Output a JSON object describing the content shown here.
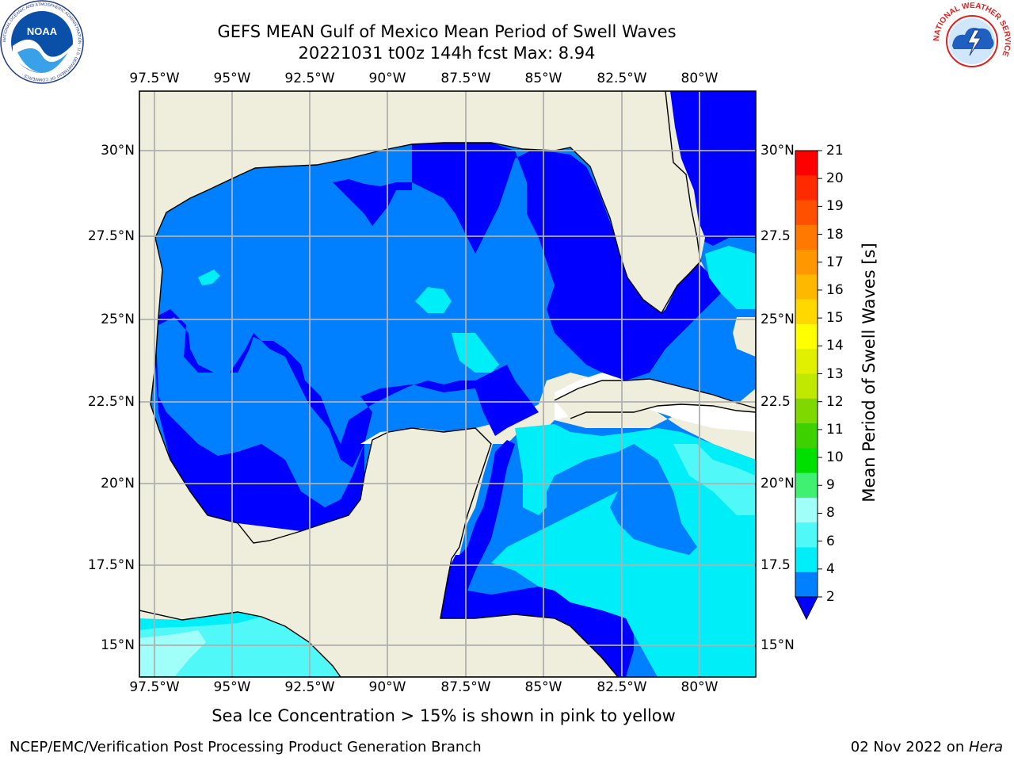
{
  "header": {
    "title_line1": "GEFS MEAN Gulf of Mexico Mean Period of Swell Waves",
    "title_line2": "20221031 t00z 144h fcst   Max: 8.94"
  },
  "axes": {
    "lon_labels": [
      "97.5°W",
      "95°W",
      "92.5°W",
      "90°W",
      "87.5°W",
      "85°W",
      "82.5°W",
      "80°W"
    ],
    "lat_labels": [
      "30°N",
      "27.5°N",
      "25°N",
      "22.5°N",
      "20°N",
      "17.5°N",
      "15°N"
    ],
    "lat_labels_right": [
      "30°N",
      "27.5",
      "25°N",
      "22.5",
      "20°N",
      "17.5",
      "15°N"
    ]
  },
  "colorbar": {
    "label": "Mean Period of Swell Waves [s]",
    "ticks": [
      "21",
      "20",
      "19",
      "18",
      "17",
      "16",
      "15",
      "14",
      "13",
      "12",
      "11",
      "10",
      "9",
      "8",
      "6",
      "4",
      "2"
    ],
    "colors": [
      "#ff0000",
      "#ff2a00",
      "#ff5000",
      "#ff7800",
      "#ff9800",
      "#ffb800",
      "#ffd800",
      "#ffff00",
      "#e0f000",
      "#c0e800",
      "#7fd800",
      "#3fd000",
      "#00e000",
      "#40f070",
      "#a0fff8",
      "#50f8f8",
      "#00eef8",
      "#0080ff"
    ],
    "under_color": "#0000ff"
  },
  "map": {
    "land_color": "#efeedd",
    "colors": {
      "deep": "#0000ff",
      "mid": "#0080ff",
      "light": "#00eef8",
      "lighter": "#50f8f8",
      "pale": "#a0fff8"
    }
  },
  "notes": {
    "ice": "Sea Ice Concentration > 15% is shown in pink to yellow"
  },
  "footer": {
    "left": "NCEP/EMC/Verification Post Processing Product Generation Branch",
    "right_date": "02 Nov 2022 on ",
    "right_host": "Hera"
  },
  "logos": {
    "noaa_text": "NOAA",
    "noaa_ring": "NATIONAL OCEANIC AND ATMOSPHERIC ADMINISTRATION · U.S. DEPARTMENT OF COMMERCE ·",
    "nws_ring": "NATIONAL WEATHER SERVICE"
  }
}
